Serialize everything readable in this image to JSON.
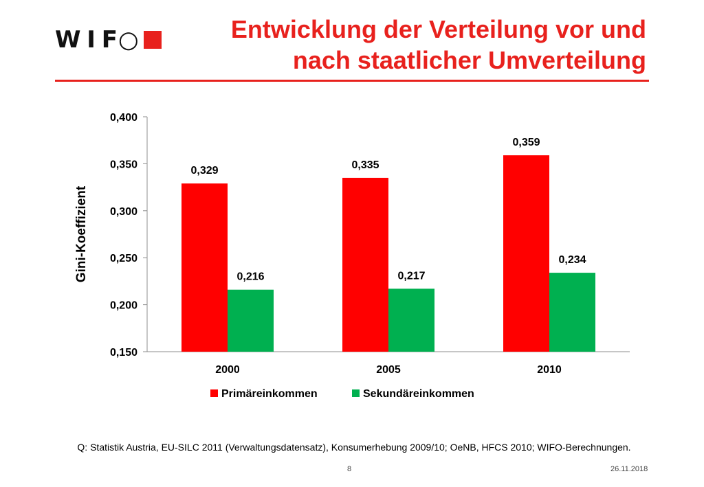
{
  "slide": {
    "logo_text": "W I F○",
    "title_line1": "Entwicklung der Verteilung vor und",
    "title_line2": "nach staatlicher Umverteilung",
    "accent_color": "#E8211D",
    "source": "Q: Statistik Austria, EU-SILC 2011 (Verwaltungsdatensatz), Konsumerhebung 2009/10; OeNB, HFCS 2010; WIFO-Berechnungen.",
    "page_number": "8",
    "date": "26.11.2018"
  },
  "chart_data": {
    "type": "bar",
    "categories": [
      "2000",
      "2005",
      "2010"
    ],
    "series": [
      {
        "name": "Primäreinkommen",
        "values": [
          0.329,
          0.335,
          0.359
        ],
        "labels": [
          "0,329",
          "0,335",
          "0,359"
        ],
        "color": "#FF0000"
      },
      {
        "name": "Sekundäreinkommen",
        "values": [
          0.216,
          0.217,
          0.234
        ],
        "labels": [
          "0,216",
          "0,217",
          "0,234"
        ],
        "color": "#00B050"
      }
    ],
    "title": "",
    "xlabel": "",
    "ylabel": "Gini-Koeffizient",
    "ylim": [
      0.15,
      0.4
    ],
    "yticks": [
      0.15,
      0.2,
      0.25,
      0.3,
      0.35,
      0.4
    ],
    "ytick_labels": [
      "0,150",
      "0,200",
      "0,250",
      "0,300",
      "0,350",
      "0,400"
    ],
    "grid": false,
    "legend": "bottom"
  }
}
